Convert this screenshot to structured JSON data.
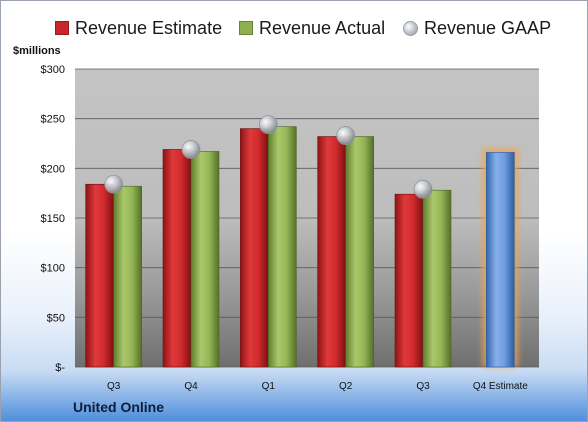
{
  "legend": {
    "estimate": "Revenue Estimate",
    "actual": "Revenue Actual",
    "gaap": "Revenue GAAP"
  },
  "unit_label": "$millions",
  "company": "United Online",
  "colors": {
    "estimate": "#c8282a",
    "actual": "#8eb050",
    "gaap": "#b9bec5",
    "forecast": "#5b8fd6",
    "forecast_glow": "#f0a34c"
  },
  "chart_data": {
    "type": "bar",
    "categories": [
      "Q3",
      "Q4",
      "Q1",
      "Q2",
      "Q3",
      "Q4 Estimate"
    ],
    "series": [
      {
        "name": "Revenue Estimate",
        "values": [
          184,
          219,
          240,
          232,
          174,
          null
        ]
      },
      {
        "name": "Revenue Actual",
        "values": [
          182,
          217,
          242,
          232,
          178,
          null
        ]
      },
      {
        "name": "Revenue GAAP",
        "values": [
          184,
          219,
          244,
          233,
          179,
          null
        ]
      }
    ],
    "forecast": {
      "category": "Q4 Estimate",
      "value": 216
    },
    "ylim": [
      0,
      300
    ],
    "yticks": [
      {
        "value": 0,
        "label": "$-"
      },
      {
        "value": 50,
        "label": "$50"
      },
      {
        "value": 100,
        "label": "$100"
      },
      {
        "value": 150,
        "label": "$150"
      },
      {
        "value": 200,
        "label": "$200"
      },
      {
        "value": 250,
        "label": "$250"
      },
      {
        "value": 300,
        "label": "$300"
      }
    ],
    "grid": true,
    "legend_position": "top"
  }
}
